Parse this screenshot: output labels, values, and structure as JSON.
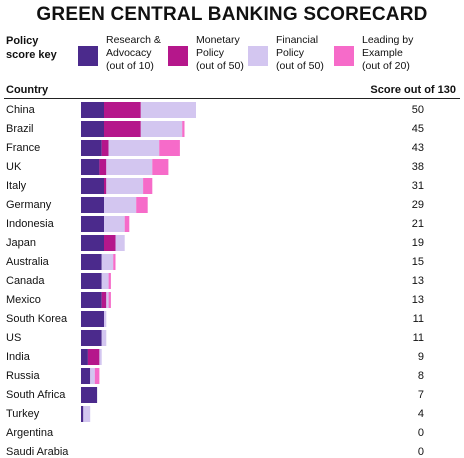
{
  "chart_data": {
    "type": "bar",
    "orientation": "horizontal",
    "stacked": true,
    "title": "GREEN CENTRAL BANKING SCORECARD",
    "key_label": "Policy score key",
    "category_header": "Country",
    "score_header": "Score out of 130",
    "categories": [
      "China",
      "Brazil",
      "France",
      "UK",
      "Italy",
      "Germany",
      "Indonesia",
      "Japan",
      "Australia",
      "Canada",
      "Mexico",
      "South Korea",
      "US",
      "India",
      "Russia",
      "South Africa",
      "Turkey",
      "Argentina",
      "Saudi Arabia"
    ],
    "totals": [
      50,
      45,
      43,
      38,
      31,
      29,
      21,
      19,
      15,
      13,
      13,
      11,
      11,
      9,
      8,
      7,
      4,
      0,
      0
    ],
    "xlim": [
      0,
      130
    ],
    "series": [
      {
        "name": "Research & Advocacy\n(out of 10)",
        "color": "#4b2a8c",
        "values": [
          10,
          10,
          9,
          8,
          10,
          10,
          10,
          10,
          9,
          9,
          9,
          10,
          9,
          3,
          4,
          7,
          1,
          0,
          0
        ]
      },
      {
        "name": "Monetary\nPolicy\n(out of 50)",
        "color": "#b5178b",
        "values": [
          16,
          16,
          3,
          3,
          1,
          0,
          0,
          5,
          0,
          0,
          2,
          0,
          0,
          5,
          0,
          0,
          0,
          0,
          0
        ]
      },
      {
        "name": "Financial\nPolicy\n(out of 50)",
        "color": "#d3c6f0",
        "values": [
          24,
          18,
          22,
          20,
          16,
          14,
          9,
          4,
          5,
          3,
          1,
          1,
          2,
          1,
          2,
          0,
          3,
          0,
          0
        ]
      },
      {
        "name": "Leading by\nExample\n(out of 20)",
        "color": "#f66bc9",
        "values": [
          0,
          1,
          9,
          7,
          4,
          5,
          2,
          0,
          1,
          1,
          1,
          0,
          0,
          0,
          2,
          0,
          0,
          0,
          0
        ]
      }
    ]
  }
}
